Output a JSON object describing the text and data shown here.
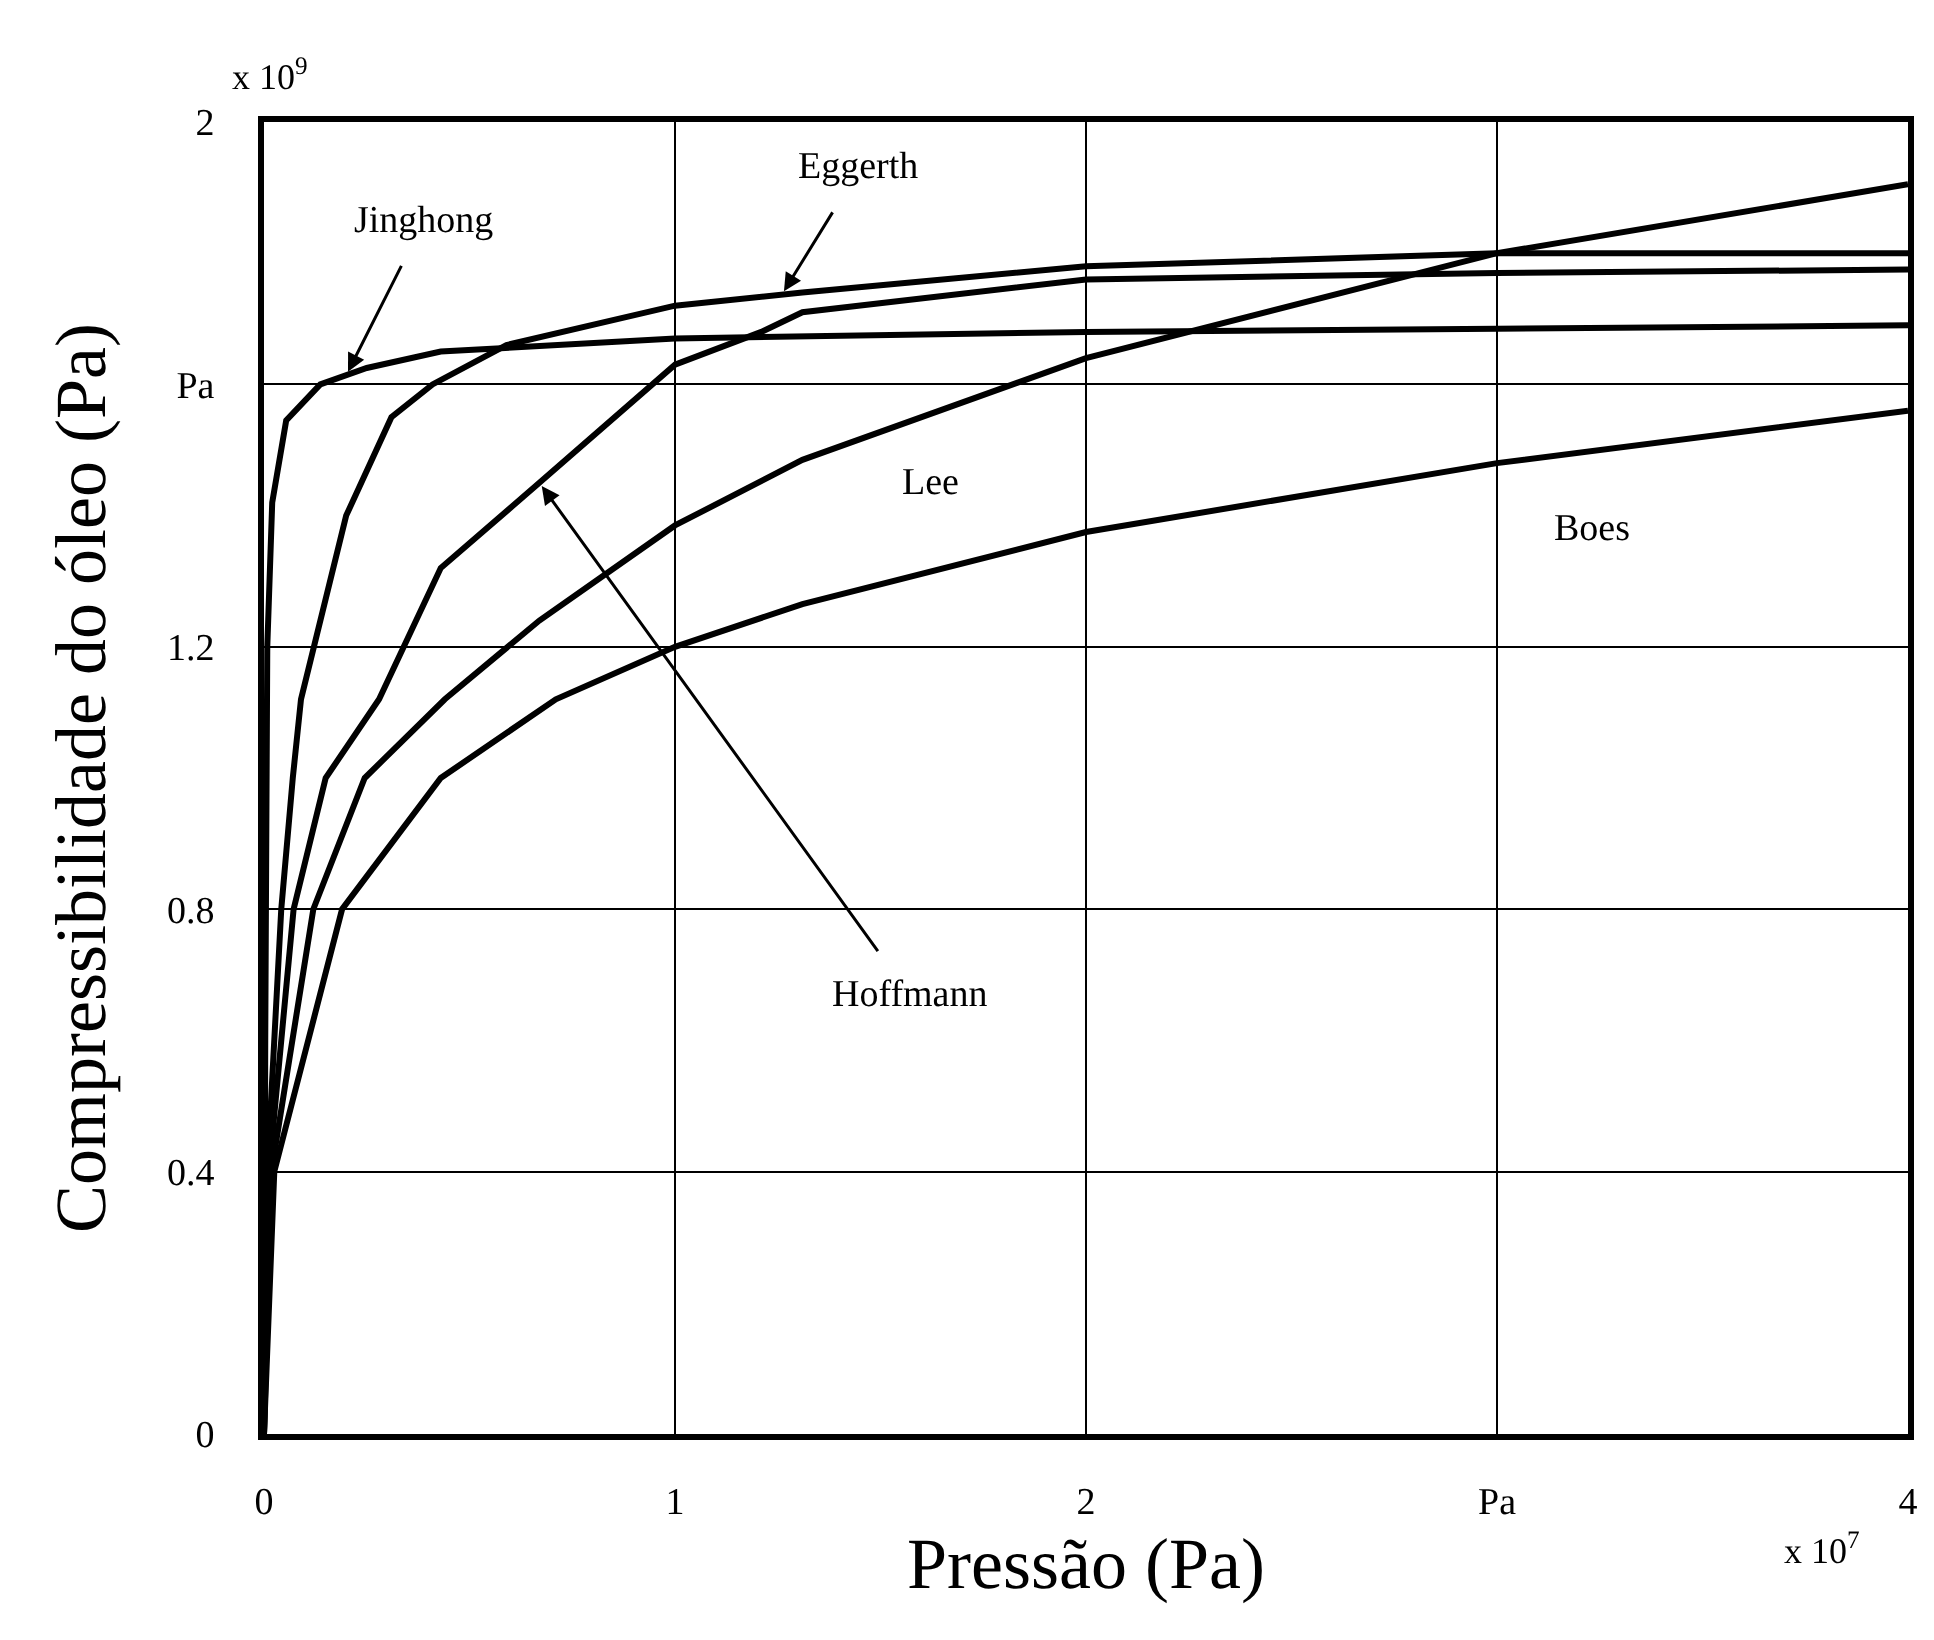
{
  "chart_data": {
    "type": "line",
    "xlabel": "Pressão (Pa)",
    "ylabel": "Compressibilidade do óleo (Pa)",
    "xlim": [
      0,
      4
    ],
    "xticks": [
      0,
      1,
      2,
      {
        "value": 3,
        "label": "Pa"
      },
      4
    ],
    "ylim": [
      0,
      2
    ],
    "yticks": [
      0,
      0.4,
      0.8,
      1.2,
      {
        "value": 1.6,
        "label": "Pa"
      },
      2
    ],
    "grid": true,
    "legend": false,
    "marker": "none",
    "line_style": "solid",
    "annotations": [
      "x 10$^{9}$",
      "x 10$^{7}$",
      {
        "text": "Hoffmann",
        "x": 0.67,
        "y": 1.45
      }
    ],
    "series": [
      {
        "name": "Jinghong",
        "color": "#000000",
        "x": [
          0,
          0.003,
          0.008,
          0.02,
          0.054,
          0.137,
          0.25,
          0.43,
          1,
          2,
          3,
          4
        ],
        "values": [
          0,
          0.6,
          1.2,
          1.42,
          1.545,
          1.6,
          1.625,
          1.65,
          1.67,
          1.68,
          1.685,
          1.69
        ]
      },
      {
        "name": "Eggerth",
        "color": "#000000",
        "x": [
          0,
          0.008,
          0.042,
          0.07,
          0.09,
          0.2,
          0.31,
          0.41,
          0.59,
          1,
          1.31,
          2,
          3,
          4
        ],
        "values": [
          0,
          0.4,
          0.8,
          1.0,
          1.12,
          1.4,
          1.55,
          1.6,
          1.66,
          1.72,
          1.74,
          1.78,
          1.8,
          1.8
        ]
      },
      {
        "color": "#000000",
        "x": [
          0,
          0.012,
          0.072,
          0.15,
          0.28,
          0.43,
          0.67,
          1,
          1.21,
          1.31,
          2,
          3,
          4
        ],
        "values": [
          0,
          0.4,
          0.8,
          1.0,
          1.12,
          1.32,
          1.45,
          1.63,
          1.68,
          1.71,
          1.76,
          1.77,
          1.775
        ]
      },
      {
        "name": "Lee",
        "color": "#000000",
        "x": [
          0,
          0.018,
          0.12,
          0.245,
          0.44,
          0.67,
          1,
          1.31,
          2,
          3,
          4
        ],
        "values": [
          0,
          0.4,
          0.8,
          1.0,
          1.12,
          1.24,
          1.385,
          1.485,
          1.64,
          1.8,
          1.905
        ]
      },
      {
        "name": "Boes",
        "color": "#000000",
        "x": [
          0,
          0.025,
          0.19,
          0.43,
          0.71,
          1,
          1.31,
          2,
          3,
          4
        ],
        "values": [
          0,
          0.4,
          0.8,
          1.0,
          1.12,
          1.2,
          1.265,
          1.375,
          1.48,
          1.56
        ]
      }
    ]
  }
}
